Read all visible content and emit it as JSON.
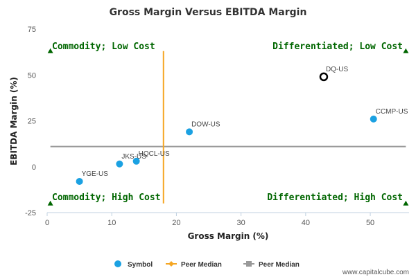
{
  "chart_data": {
    "type": "scatter",
    "title": "Gross Margin Versus EBITDA Margin",
    "xlabel": "Gross Margin (%)",
    "ylabel": "EBITDA Margin (%)",
    "xlim": [
      0,
      56
    ],
    "ylim": [
      -25,
      75
    ],
    "x_ticks": [
      "0",
      "10",
      "20",
      "30",
      "40",
      "50"
    ],
    "y_ticks": [
      "-25",
      "0",
      "25",
      "50",
      "75"
    ],
    "grid": false,
    "points": [
      {
        "label": "YGE-US",
        "x": 5.0,
        "y": -8.0
      },
      {
        "label": "JKS-US",
        "x": 11.2,
        "y": 1.5
      },
      {
        "label": "HQCL-US",
        "x": 13.8,
        "y": 3.0
      },
      {
        "label": "DOW-US",
        "x": 22.0,
        "y": 19.0
      },
      {
        "label": "CCMP-US",
        "x": 50.5,
        "y": 26.0
      },
      {
        "label": "DQ-US",
        "x": 42.8,
        "y": 49.0,
        "highlighted": true
      }
    ],
    "peer_median_x": 18.0,
    "peer_median_y": 11.0,
    "quadrants": {
      "top_left": "Commodity; Low Cost",
      "top_right": "Differentiated; Low Cost",
      "bottom_left": "Commodity; High Cost",
      "bottom_right": "Differentiated; High Cost"
    },
    "legend": [
      {
        "name": "Symbol",
        "color": "#1ba1e2"
      },
      {
        "name": "Peer Median",
        "color": "#f5a623"
      },
      {
        "name": "Peer Median",
        "color": "#999999"
      }
    ],
    "legend_position": "bottom",
    "colors": {
      "point": "#1ba1e2",
      "highlight_stroke": "#000000",
      "median_x_line": "#f5a623",
      "median_y_line": "#999999",
      "quadrant_text": "#006600"
    }
  },
  "credit": "www.capitalcube.com"
}
